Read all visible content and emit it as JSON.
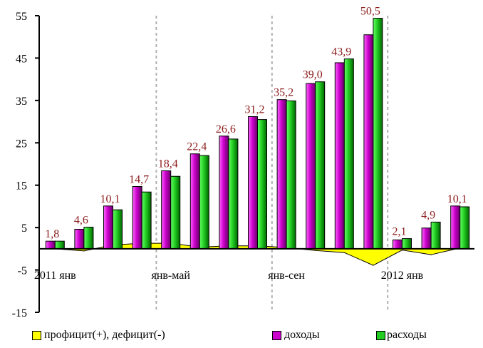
{
  "chart_data": {
    "type": "bar",
    "y_axis": {
      "ylim": [
        -15,
        55
      ],
      "ticks": [
        -15,
        -5,
        5,
        15,
        25,
        35,
        45,
        55
      ]
    },
    "x_tick_labels": [
      {
        "index": 0,
        "text": "2011 янв"
      },
      {
        "index": 4,
        "text": "янв-май"
      },
      {
        "index": 8,
        "text": "янв-сен"
      },
      {
        "index": 12,
        "text": "2012 янв"
      }
    ],
    "separators_after_index": [
      3,
      7,
      11
    ],
    "series": [
      {
        "name": "доходы",
        "color": "#cc00cc",
        "values": [
          1.8,
          4.6,
          10.1,
          14.7,
          18.4,
          22.4,
          26.6,
          31.2,
          35.2,
          39.0,
          43.9,
          50.5,
          2.1,
          4.9,
          10.1
        ],
        "labels": [
          "1,8",
          "4,6",
          "10,1",
          "14,7",
          "18,4",
          "22,4",
          "26,6",
          "31,2",
          "35,2",
          "39,0",
          "43,9",
          "50,5",
          "2,1",
          "4,9",
          "10,1"
        ]
      },
      {
        "name": "расходы",
        "color": "#22cc22",
        "values": [
          1.8,
          5.1,
          9.2,
          13.4,
          17.1,
          22.0,
          25.9,
          30.5,
          34.9,
          39.4,
          44.8,
          54.4,
          2.4,
          6.3,
          9.9
        ]
      },
      {
        "name": "профицит(+), дефицит(-)",
        "color": "#ffff00",
        "type": "area",
        "values": [
          0.0,
          -0.5,
          0.9,
          1.3,
          1.3,
          0.4,
          0.7,
          0.7,
          0.3,
          -0.4,
          -0.9,
          -3.9,
          -0.3,
          -1.4,
          0.2
        ]
      }
    ]
  },
  "legend": {
    "items": [
      {
        "label": "профицит(+), дефицит(-)",
        "color": "#ffff00"
      },
      {
        "label": "доходы",
        "color": "#cc00cc"
      },
      {
        "label": "расходы",
        "color": "#22cc22"
      }
    ]
  }
}
